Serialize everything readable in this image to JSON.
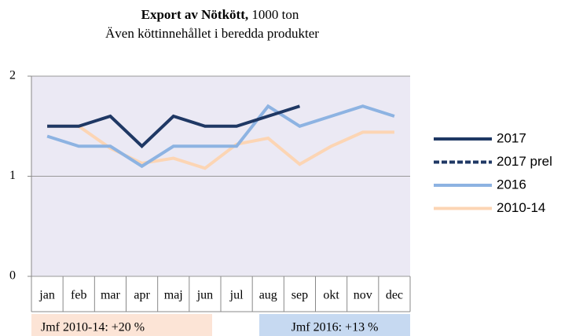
{
  "chart_data": {
    "type": "line",
    "title": "Export av Nötkött,",
    "title_unit": "1000 ton",
    "subtitle": "Även köttinnehållet i beredda produkter",
    "categories": [
      "jan",
      "feb",
      "mar",
      "apr",
      "maj",
      "jun",
      "jul",
      "aug",
      "sep",
      "okt",
      "nov",
      "dec"
    ],
    "series": [
      {
        "name": "2017",
        "color": "#1f3864",
        "dashed": false,
        "values": [
          1.5,
          1.5,
          1.6,
          1.3,
          1.6,
          1.5,
          1.5,
          1.6,
          1.7,
          null,
          null,
          null
        ]
      },
      {
        "name": "2017 prel",
        "color": "#1f3864",
        "dashed": true,
        "values": [
          null,
          null,
          null,
          null,
          null,
          null,
          null,
          null,
          null,
          null,
          null,
          null
        ]
      },
      {
        "name": "2016",
        "color": "#8db3e2",
        "dashed": false,
        "values": [
          1.4,
          1.3,
          1.3,
          1.1,
          1.3,
          1.3,
          1.3,
          1.7,
          1.5,
          1.6,
          1.7,
          1.6
        ]
      },
      {
        "name": "2010-14",
        "color": "#fcd5b4",
        "dashed": false,
        "values": [
          1.5,
          1.5,
          1.28,
          1.13,
          1.18,
          1.08,
          1.32,
          1.38,
          1.12,
          1.3,
          1.44,
          1.44
        ]
      }
    ],
    "ylim": [
      0,
      2
    ],
    "yticks": [
      0,
      1,
      2
    ],
    "grid": true,
    "plot_background": "#ebe9f4",
    "annotations": [
      {
        "text": "Jmf 2010-14: +20 %",
        "color": "#fce4d6"
      },
      {
        "text": "Jmf 2016: +13 %",
        "color": "#c6d9f1"
      }
    ],
    "legend": "right"
  }
}
